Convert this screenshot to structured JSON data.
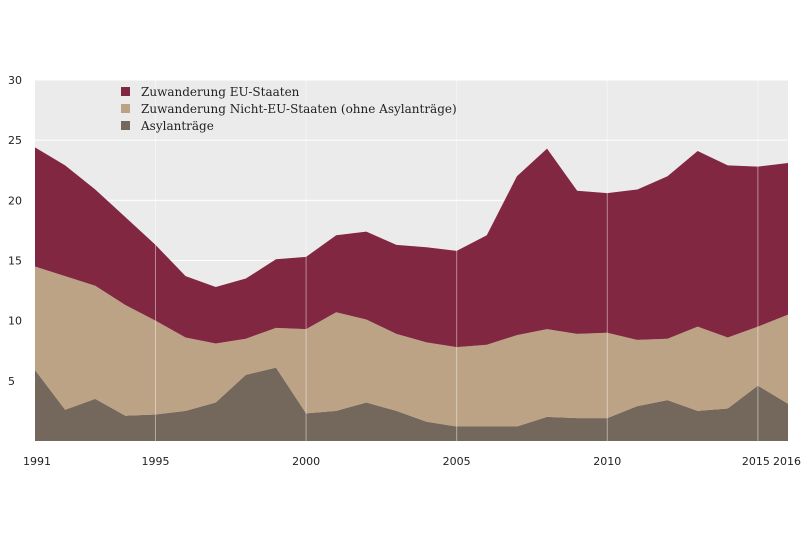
{
  "chart_data": {
    "type": "area",
    "stacked": true,
    "x": [
      1991,
      1992,
      1993,
      1994,
      1995,
      1996,
      1997,
      1998,
      1999,
      2000,
      2001,
      2002,
      2003,
      2004,
      2005,
      2006,
      2007,
      2008,
      2009,
      2010,
      2011,
      2012,
      2013,
      2014,
      2015,
      2016
    ],
    "x_ticks": [
      1991,
      1995,
      2000,
      2005,
      2010,
      2015,
      2016
    ],
    "y_ticks": [
      5,
      10,
      15,
      20,
      25,
      30
    ],
    "ylim": [
      0,
      30
    ],
    "grid": true,
    "legend_position": "top-left",
    "series": [
      {
        "name": "Asylanträge",
        "color": "#74685c",
        "values": [
          5.9,
          2.6,
          3.5,
          2.1,
          2.2,
          2.5,
          3.2,
          5.5,
          6.1,
          2.3,
          2.5,
          3.2,
          2.5,
          1.6,
          1.2,
          1.2,
          1.2,
          2.0,
          1.9,
          1.9,
          2.9,
          3.4,
          2.5,
          2.7,
          4.6,
          3.1
        ]
      },
      {
        "name": "Zuwanderung Nicht-EU-Staaten (ohne Asylanträge)",
        "color": "#bca385",
        "values": [
          8.6,
          11.1,
          9.4,
          9.2,
          7.8,
          6.1,
          4.9,
          3.0,
          3.3,
          7.0,
          8.2,
          6.9,
          6.4,
          6.6,
          6.6,
          6.8,
          7.6,
          7.3,
          7.0,
          7.1,
          5.5,
          5.1,
          7.0,
          5.9,
          4.9,
          7.4
        ]
      },
      {
        "name": "Zuwanderung EU-Staaten",
        "color": "#822742",
        "values": [
          9.9,
          9.2,
          8.0,
          7.3,
          6.3,
          5.1,
          4.7,
          5.0,
          5.7,
          6.0,
          6.4,
          7.3,
          7.4,
          7.9,
          8.0,
          9.1,
          13.2,
          15.0,
          11.9,
          11.6,
          12.5,
          13.5,
          14.6,
          14.3,
          13.3,
          12.6
        ]
      }
    ]
  }
}
